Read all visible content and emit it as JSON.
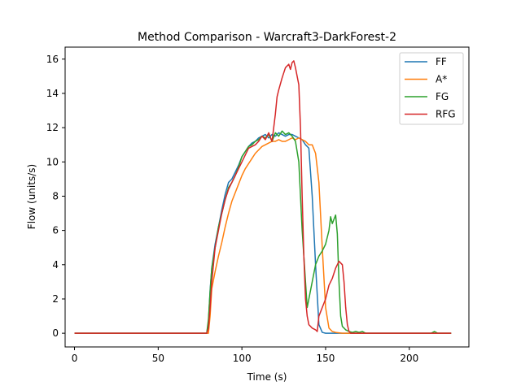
{
  "chart_data": {
    "type": "line",
    "title": "Method Comparison - Warcraft3-DarkForest-2",
    "xlabel": "Time (s)",
    "ylabel": "Flow (units/s)",
    "xlim": [
      -5.6,
      235.6
    ],
    "ylim": [
      -0.8,
      16.7
    ],
    "xticks": [
      0,
      50,
      100,
      150,
      200
    ],
    "yticks": [
      0,
      2,
      4,
      6,
      8,
      10,
      12,
      14,
      16
    ],
    "grid": false,
    "legend_position": "top-right",
    "series": [
      {
        "name": "FF",
        "color": "#1f77b4",
        "points": [
          [
            0,
            0
          ],
          [
            79,
            0
          ],
          [
            80,
            0.6
          ],
          [
            81,
            2.5
          ],
          [
            82,
            3.8
          ],
          [
            84,
            5.2
          ],
          [
            86,
            6.2
          ],
          [
            88,
            7.2
          ],
          [
            90,
            8.1
          ],
          [
            92,
            8.8
          ],
          [
            94,
            9.0
          ],
          [
            96,
            9.4
          ],
          [
            98,
            9.8
          ],
          [
            100,
            10.3
          ],
          [
            102,
            10.6
          ],
          [
            104,
            10.9
          ],
          [
            106,
            11.1
          ],
          [
            108,
            11.2
          ],
          [
            110,
            11.4
          ],
          [
            112,
            11.5
          ],
          [
            114,
            11.6
          ],
          [
            116,
            11.4
          ],
          [
            118,
            11.6
          ],
          [
            120,
            11.5
          ],
          [
            122,
            11.7
          ],
          [
            124,
            11.6
          ],
          [
            126,
            11.5
          ],
          [
            128,
            11.6
          ],
          [
            130,
            11.6
          ],
          [
            132,
            11.5
          ],
          [
            134,
            11.4
          ],
          [
            136,
            11.3
          ],
          [
            138,
            11.0
          ],
          [
            140,
            10.8
          ],
          [
            142,
            8.0
          ],
          [
            144,
            4.0
          ],
          [
            146,
            0.5
          ],
          [
            148,
            0.05
          ],
          [
            150,
            0
          ],
          [
            225,
            0
          ]
        ]
      },
      {
        "name": "A*",
        "color": "#ff7f0e",
        "points": [
          [
            0,
            0
          ],
          [
            80,
            0
          ],
          [
            81,
            1.0
          ],
          [
            82,
            2.6
          ],
          [
            84,
            3.6
          ],
          [
            86,
            4.5
          ],
          [
            88,
            5.3
          ],
          [
            90,
            6.2
          ],
          [
            92,
            7.0
          ],
          [
            94,
            7.7
          ],
          [
            96,
            8.2
          ],
          [
            98,
            8.7
          ],
          [
            100,
            9.2
          ],
          [
            102,
            9.6
          ],
          [
            104,
            9.9
          ],
          [
            106,
            10.2
          ],
          [
            108,
            10.5
          ],
          [
            110,
            10.7
          ],
          [
            112,
            10.9
          ],
          [
            114,
            11.0
          ],
          [
            116,
            11.1
          ],
          [
            118,
            11.2
          ],
          [
            120,
            11.2
          ],
          [
            122,
            11.3
          ],
          [
            124,
            11.2
          ],
          [
            126,
            11.2
          ],
          [
            128,
            11.3
          ],
          [
            130,
            11.4
          ],
          [
            132,
            11.3
          ],
          [
            134,
            11.4
          ],
          [
            136,
            11.3
          ],
          [
            138,
            11.2
          ],
          [
            140,
            11.0
          ],
          [
            142,
            11.0
          ],
          [
            144,
            10.5
          ],
          [
            146,
            8.8
          ],
          [
            148,
            5.0
          ],
          [
            150,
            1.5
          ],
          [
            152,
            0.3
          ],
          [
            154,
            0.1
          ],
          [
            156,
            0.05
          ],
          [
            160,
            0
          ],
          [
            225,
            0
          ]
        ]
      },
      {
        "name": "FG",
        "color": "#2ca02c",
        "points": [
          [
            0,
            0
          ],
          [
            79,
            0
          ],
          [
            80,
            0.8
          ],
          [
            81,
            2.4
          ],
          [
            82,
            3.8
          ],
          [
            84,
            5.0
          ],
          [
            86,
            6.2
          ],
          [
            88,
            7.0
          ],
          [
            90,
            7.8
          ],
          [
            92,
            8.5
          ],
          [
            94,
            8.8
          ],
          [
            96,
            9.2
          ],
          [
            98,
            9.7
          ],
          [
            100,
            10.3
          ],
          [
            102,
            10.6
          ],
          [
            104,
            10.9
          ],
          [
            106,
            11.0
          ],
          [
            108,
            11.2
          ],
          [
            110,
            11.3
          ],
          [
            112,
            11.5
          ],
          [
            114,
            11.4
          ],
          [
            116,
            11.6
          ],
          [
            118,
            11.2
          ],
          [
            120,
            11.7
          ],
          [
            122,
            11.5
          ],
          [
            124,
            11.8
          ],
          [
            126,
            11.6
          ],
          [
            128,
            11.7
          ],
          [
            130,
            11.5
          ],
          [
            132,
            11.2
          ],
          [
            134,
            10.0
          ],
          [
            136,
            6.0
          ],
          [
            138,
            3.0
          ],
          [
            139,
            1.5
          ],
          [
            140,
            2.0
          ],
          [
            142,
            3.0
          ],
          [
            144,
            4.0
          ],
          [
            146,
            4.5
          ],
          [
            148,
            4.8
          ],
          [
            150,
            5.2
          ],
          [
            152,
            6.0
          ],
          [
            153,
            6.8
          ],
          [
            154,
            6.4
          ],
          [
            156,
            6.9
          ],
          [
            157,
            5.8
          ],
          [
            158,
            3.0
          ],
          [
            159,
            1.0
          ],
          [
            160,
            0.4
          ],
          [
            162,
            0.2
          ],
          [
            164,
            0.1
          ],
          [
            166,
            0.05
          ],
          [
            168,
            0.1
          ],
          [
            170,
            0.05
          ],
          [
            172,
            0.1
          ],
          [
            174,
            0
          ],
          [
            180,
            0
          ],
          [
            213,
            0
          ],
          [
            215,
            0.1
          ],
          [
            217,
            0
          ],
          [
            225,
            0
          ]
        ]
      },
      {
        "name": "RFG",
        "color": "#d62728",
        "points": [
          [
            0,
            0
          ],
          [
            79,
            0
          ],
          [
            80,
            0.3
          ],
          [
            81,
            1.5
          ],
          [
            82,
            3.0
          ],
          [
            84,
            5.0
          ],
          [
            86,
            6.0
          ],
          [
            88,
            7.0
          ],
          [
            90,
            7.8
          ],
          [
            92,
            8.4
          ],
          [
            94,
            8.8
          ],
          [
            96,
            9.2
          ],
          [
            98,
            9.6
          ],
          [
            100,
            10.0
          ],
          [
            102,
            10.4
          ],
          [
            104,
            10.8
          ],
          [
            106,
            10.9
          ],
          [
            108,
            11.0
          ],
          [
            110,
            11.2
          ],
          [
            112,
            11.5
          ],
          [
            114,
            11.3
          ],
          [
            116,
            11.7
          ],
          [
            118,
            11.2
          ],
          [
            119,
            12.0
          ],
          [
            120,
            12.8
          ],
          [
            121,
            13.8
          ],
          [
            122,
            14.2
          ],
          [
            124,
            14.9
          ],
          [
            126,
            15.5
          ],
          [
            128,
            15.7
          ],
          [
            129,
            15.4
          ],
          [
            130,
            15.8
          ],
          [
            131,
            15.9
          ],
          [
            132,
            15.5
          ],
          [
            134,
            14.5
          ],
          [
            135,
            12.0
          ],
          [
            136,
            8.0
          ],
          [
            137,
            4.5
          ],
          [
            138,
            2.0
          ],
          [
            139,
            1.0
          ],
          [
            140,
            0.5
          ],
          [
            142,
            0.3
          ],
          [
            144,
            0.2
          ],
          [
            145,
            0.1
          ],
          [
            146,
            1.0
          ],
          [
            148,
            1.5
          ],
          [
            150,
            2.0
          ],
          [
            152,
            2.8
          ],
          [
            154,
            3.2
          ],
          [
            156,
            3.8
          ],
          [
            158,
            4.2
          ],
          [
            160,
            4.0
          ],
          [
            161,
            3.0
          ],
          [
            162,
            1.5
          ],
          [
            163,
            0.5
          ],
          [
            164,
            0.1
          ],
          [
            165,
            0
          ],
          [
            225,
            0
          ]
        ]
      }
    ]
  }
}
